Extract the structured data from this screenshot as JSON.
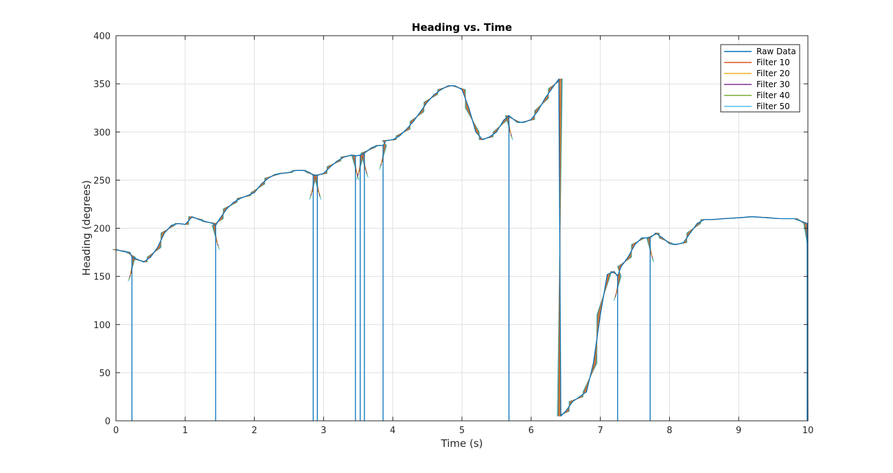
{
  "chart_data": {
    "type": "line",
    "title": "Heading vs. Time",
    "xlabel": "Time (s)",
    "ylabel": "Heading (degrees)",
    "xlim": [
      0,
      10
    ],
    "ylim": [
      0,
      400
    ],
    "xticks": [
      "0",
      "1",
      "2",
      "3",
      "4",
      "5",
      "6",
      "7",
      "8",
      "9",
      "10"
    ],
    "yticks": [
      "0",
      "50",
      "100",
      "150",
      "200",
      "250",
      "300",
      "350",
      "400"
    ],
    "grid": true,
    "legend_position": "top-right",
    "series": [
      {
        "name": "Raw Data",
        "color": "#0072BD",
        "x": [
          0.0,
          0.1,
          0.2,
          0.23,
          0.23,
          0.23,
          0.3,
          0.4,
          0.5,
          0.6,
          0.7,
          0.8,
          0.9,
          1.0,
          1.1,
          1.2,
          1.3,
          1.4,
          1.44,
          1.44,
          1.44,
          1.5,
          1.6,
          1.7,
          1.8,
          1.9,
          2.0,
          2.1,
          2.2,
          2.3,
          2.4,
          2.5,
          2.6,
          2.7,
          2.8,
          2.85,
          2.85,
          2.85,
          2.91,
          2.91,
          2.91,
          3.0,
          3.1,
          3.2,
          3.3,
          3.4,
          3.46,
          3.46,
          3.46,
          3.53,
          3.53,
          3.53,
          3.59,
          3.59,
          3.59,
          3.7,
          3.8,
          3.86,
          3.86,
          3.86,
          3.9,
          4.0,
          4.1,
          4.2,
          4.3,
          4.4,
          4.5,
          4.6,
          4.7,
          4.8,
          4.9,
          5.0,
          5.1,
          5.2,
          5.3,
          5.4,
          5.5,
          5.6,
          5.68,
          5.68,
          5.68,
          5.8,
          5.9,
          6.0,
          6.1,
          6.2,
          6.3,
          6.4,
          6.43,
          6.5,
          6.6,
          6.7,
          6.8,
          6.9,
          7.0,
          7.1,
          7.2,
          7.25,
          7.25,
          7.25,
          7.3,
          7.4,
          7.5,
          7.6,
          7.72,
          7.72,
          7.72,
          7.8,
          7.9,
          8.0,
          8.1,
          8.2,
          8.3,
          8.4,
          8.5,
          8.6,
          8.8,
          9.0,
          9.2,
          9.4,
          9.6,
          9.8,
          9.99,
          9.99,
          9.99,
          10.0
        ],
        "values": [
          178,
          176,
          175,
          170,
          0,
          170,
          168,
          165,
          170,
          180,
          195,
          203,
          205,
          204,
          212,
          209,
          207,
          205,
          203,
          0,
          203,
          210,
          220,
          227,
          231,
          234,
          237,
          246,
          252,
          256,
          257,
          258,
          260,
          260,
          258,
          255,
          0,
          255,
          255,
          0,
          255,
          257,
          264,
          270,
          274,
          276,
          275,
          0,
          275,
          276,
          0,
          276,
          278,
          0,
          278,
          284,
          286,
          286,
          0,
          286,
          291,
          292,
          296,
          303,
          311,
          321,
          331,
          339,
          344,
          348,
          348,
          344,
          325,
          300,
          292,
          295,
          300,
          312,
          317,
          0,
          317,
          310,
          310,
          313,
          322,
          335,
          345,
          355,
          5,
          10,
          20,
          25,
          30,
          60,
          110,
          152,
          155,
          150,
          0,
          150,
          160,
          170,
          183,
          190,
          190,
          0,
          190,
          195,
          190,
          184,
          183,
          185,
          195,
          205,
          209,
          209,
          210,
          211,
          212,
          211,
          210,
          210,
          205,
          0,
          205,
          0
        ]
      },
      {
        "name": "Filter 10",
        "color": "#D95319"
      },
      {
        "name": "Filter 20",
        "color": "#EDB120"
      },
      {
        "name": "Filter 30",
        "color": "#7E2F8E"
      },
      {
        "name": "Filter 40",
        "color": "#77AC30"
      },
      {
        "name": "Filter 50",
        "color": "#4DBEEE"
      }
    ]
  }
}
